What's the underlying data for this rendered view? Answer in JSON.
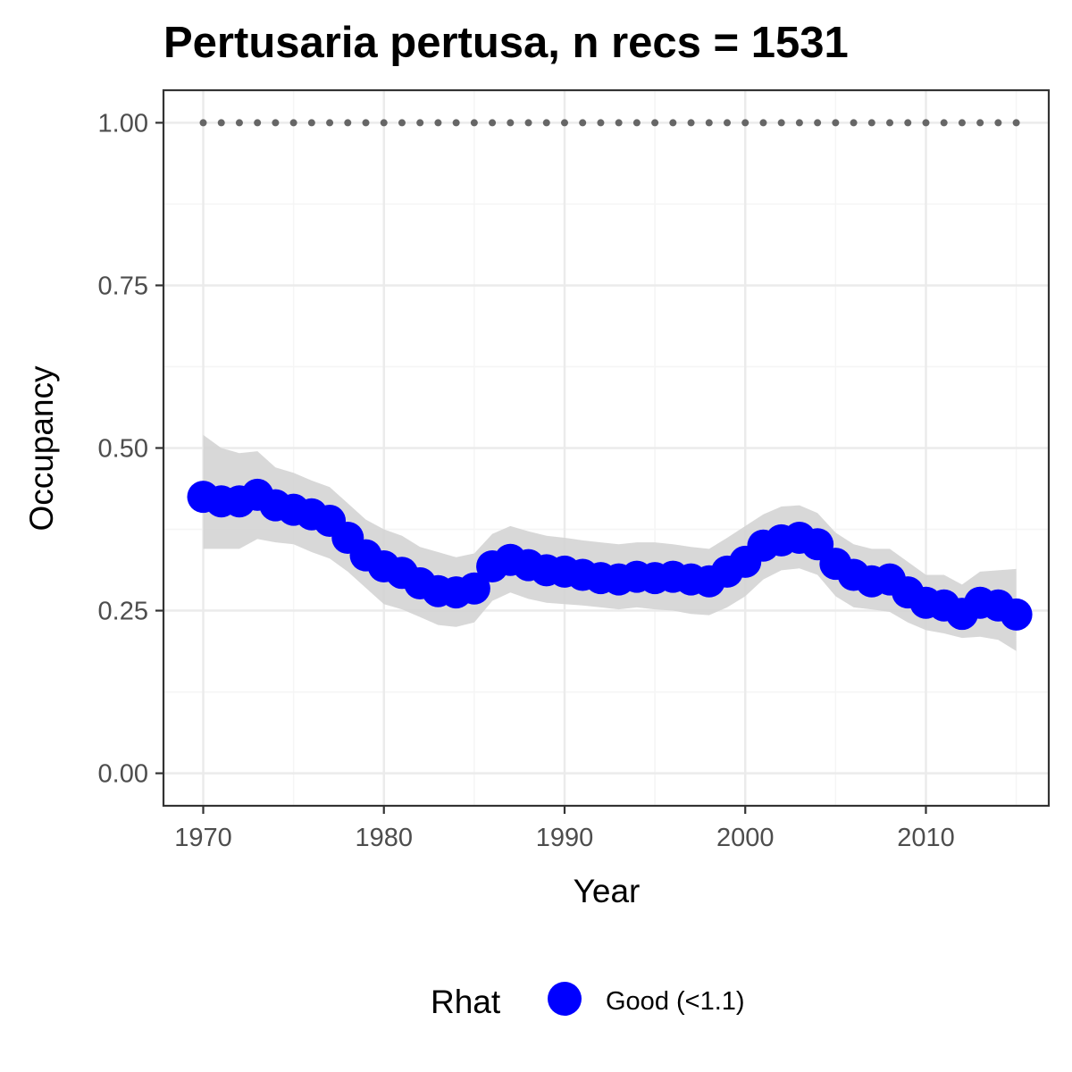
{
  "chart_data": {
    "type": "line",
    "title": "Pertusaria pertusa, n recs = 1531",
    "xlabel": "Year",
    "ylabel": "Occupancy",
    "xlim": [
      1967.8,
      2016.8
    ],
    "ylim": [
      -0.05,
      1.05
    ],
    "x_ticks": [
      1970,
      1980,
      1990,
      2000,
      2010
    ],
    "x_tick_labels": [
      "1970",
      "1980",
      "1990",
      "2000",
      "2010"
    ],
    "y_ticks": [
      0.0,
      0.25,
      0.5,
      0.75,
      1.0
    ],
    "y_tick_labels": [
      "0.00",
      "0.25",
      "0.50",
      "0.75",
      "1.00"
    ],
    "grid": true,
    "reference_line": {
      "y": 1.0,
      "style": "dotted",
      "color": "#666666",
      "x_range": [
        1970,
        2015
      ]
    },
    "series": [
      {
        "name": "Good (<1.1)",
        "color": "#0000ff",
        "x": [
          1970,
          1971,
          1972,
          1973,
          1974,
          1975,
          1976,
          1977,
          1978,
          1979,
          1980,
          1981,
          1982,
          1983,
          1984,
          1985,
          1986,
          1987,
          1988,
          1989,
          1990,
          1991,
          1992,
          1993,
          1994,
          1995,
          1996,
          1997,
          1998,
          1999,
          2000,
          2001,
          2002,
          2003,
          2004,
          2005,
          2006,
          2007,
          2008,
          2009,
          2010,
          2011,
          2012,
          2013,
          2014,
          2015
        ],
        "y": [
          0.425,
          0.418,
          0.418,
          0.428,
          0.412,
          0.405,
          0.398,
          0.388,
          0.362,
          0.335,
          0.318,
          0.308,
          0.292,
          0.28,
          0.278,
          0.284,
          0.318,
          0.328,
          0.32,
          0.312,
          0.31,
          0.305,
          0.3,
          0.298,
          0.302,
          0.3,
          0.302,
          0.298,
          0.295,
          0.31,
          0.325,
          0.35,
          0.358,
          0.362,
          0.352,
          0.322,
          0.305,
          0.295,
          0.298,
          0.278,
          0.262,
          0.258,
          0.245,
          0.262,
          0.258,
          0.244
        ],
        "lower": [
          0.345,
          0.345,
          0.345,
          0.36,
          0.355,
          0.352,
          0.34,
          0.33,
          0.31,
          0.285,
          0.26,
          0.252,
          0.24,
          0.228,
          0.225,
          0.232,
          0.265,
          0.278,
          0.268,
          0.262,
          0.26,
          0.258,
          0.255,
          0.252,
          0.255,
          0.252,
          0.25,
          0.245,
          0.243,
          0.255,
          0.272,
          0.298,
          0.312,
          0.315,
          0.305,
          0.272,
          0.255,
          0.252,
          0.248,
          0.232,
          0.22,
          0.215,
          0.208,
          0.21,
          0.205,
          0.188
        ],
        "upper": [
          0.52,
          0.5,
          0.492,
          0.495,
          0.47,
          0.462,
          0.45,
          0.44,
          0.415,
          0.39,
          0.375,
          0.365,
          0.348,
          0.34,
          0.332,
          0.338,
          0.368,
          0.38,
          0.372,
          0.365,
          0.362,
          0.358,
          0.355,
          0.352,
          0.355,
          0.355,
          0.352,
          0.348,
          0.345,
          0.362,
          0.38,
          0.398,
          0.41,
          0.412,
          0.4,
          0.37,
          0.352,
          0.345,
          0.345,
          0.325,
          0.305,
          0.305,
          0.29,
          0.31,
          0.312,
          0.314
        ]
      }
    ],
    "legend": {
      "title": "Rhat",
      "position": "bottom",
      "entries": [
        {
          "label": "Good (<1.1)",
          "color": "#0000ff"
        }
      ]
    },
    "colors": {
      "panel_border": "#333333",
      "grid_major": "#ebebeb",
      "grid_minor": "#f5f5f5",
      "ribbon": "#d4d4d4",
      "point": "#0000ff",
      "dots": "#666666"
    }
  }
}
